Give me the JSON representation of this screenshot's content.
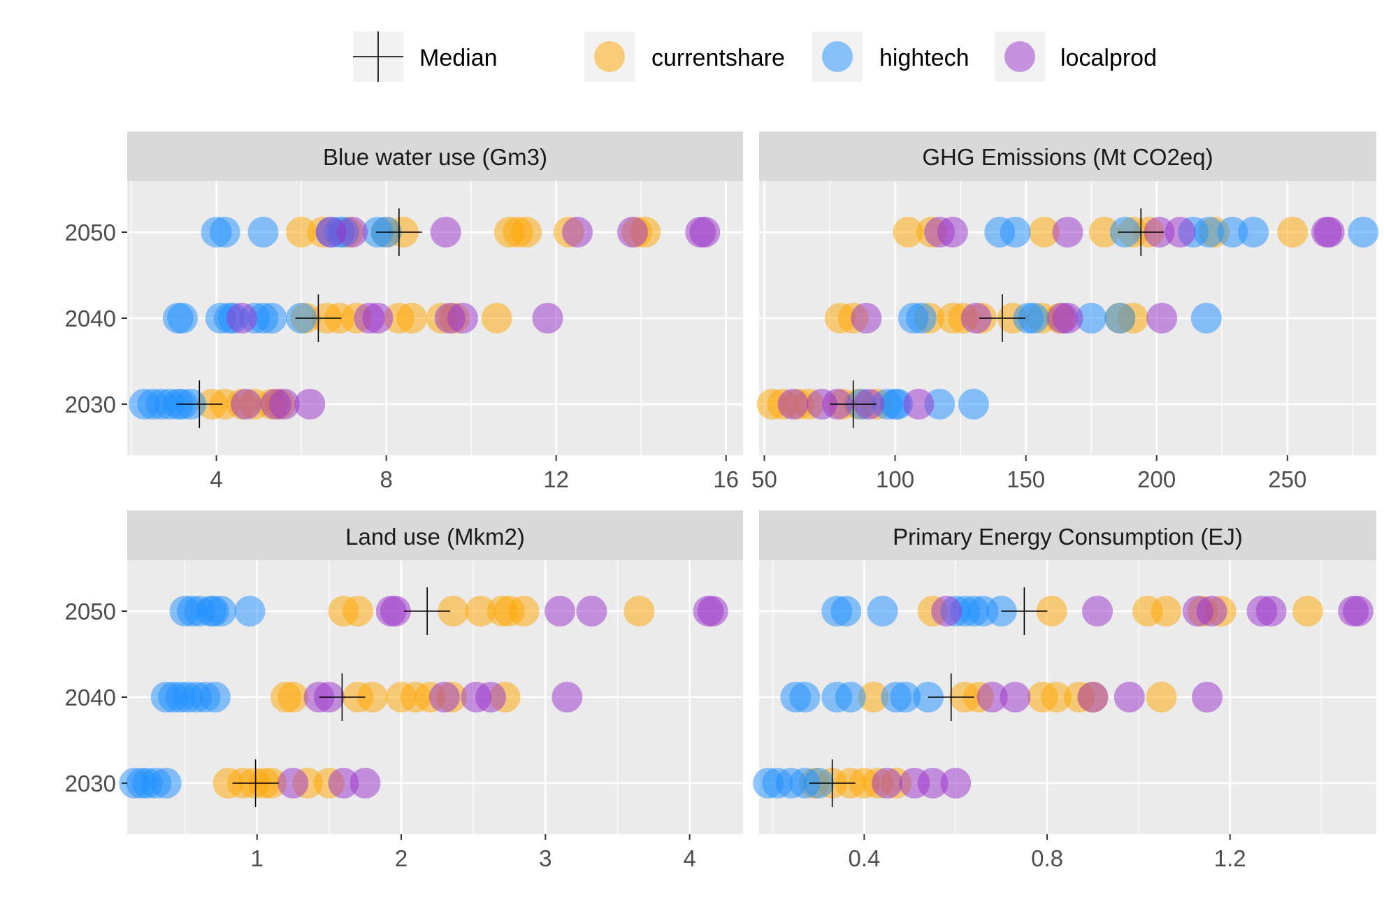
{
  "legend": {
    "median_label": "Median",
    "items": [
      {
        "key": "currentshare",
        "label": "currentshare",
        "color": "#FFA500"
      },
      {
        "key": "hightech",
        "label": "hightech",
        "color": "#1E90FF"
      },
      {
        "key": "localprod",
        "label": "localprod",
        "color": "#9932CC"
      }
    ]
  },
  "chart_data": {
    "type": "scatter",
    "grid": true,
    "legend_position": "top",
    "y_categories": [
      "2030",
      "2040",
      "2050"
    ],
    "panels": [
      {
        "title": "Blue water use (Gm3)",
        "xlim": [
          1.9,
          16.4
        ],
        "xticks": [
          4,
          8,
          12,
          16
        ],
        "medians": {
          "2030": 3.6,
          "2040": 6.4,
          "2050": 8.3
        },
        "points": {
          "2050": {
            "currentshare": [
              6.0,
              6.5,
              7.1,
              8.0,
              8.4,
              10.9,
              11.1,
              11.3,
              12.3,
              13.9,
              14.1
            ],
            "hightech": [
              4.0,
              4.2,
              5.1,
              6.7,
              6.9,
              7.0,
              7.8,
              8.0
            ],
            "localprod": [
              6.7,
              7.2,
              9.4,
              12.5,
              13.8,
              15.4,
              15.5
            ]
          },
          "2040": {
            "currentshare": [
              6.1,
              6.6,
              6.9,
              7.3,
              8.3,
              8.6,
              9.3,
              9.6,
              10.6
            ],
            "hightech": [
              3.1,
              3.2,
              4.1,
              4.3,
              4.4,
              4.9,
              5.1,
              5.3,
              6.0
            ],
            "localprod": [
              4.6,
              7.6,
              7.8,
              9.5,
              9.8,
              11.8
            ]
          },
          "2030": {
            "currentshare": [
              3.9,
              4.2,
              4.6,
              4.9,
              5.3,
              5.5
            ],
            "hightech": [
              2.3,
              2.5,
              2.7,
              2.9,
              3.1,
              3.2,
              3.4
            ],
            "localprod": [
              4.7,
              5.4,
              5.6,
              6.2
            ]
          }
        }
      },
      {
        "title": "GHG Emissions (Mt CO2eq)",
        "xlim": [
          48,
          284
        ],
        "xticks": [
          50,
          100,
          150,
          200,
          250
        ],
        "medians": {
          "2030": 84,
          "2040": 141,
          "2050": 194
        },
        "points": {
          "2050": {
            "currentshare": [
              105,
              114,
              157,
              180,
              191,
              197,
              222,
              252
            ],
            "hightech": [
              140,
              146,
              188,
              214,
              220,
              229,
              237,
              279
            ],
            "localprod": [
              117,
              122,
              166,
              201,
              209,
              265,
              266
            ]
          },
          "2040": {
            "currentshare": [
              79,
              84,
              113,
              122,
              126,
              133,
              145,
              156,
              163,
              186,
              191
            ],
            "hightech": [
              107,
              110,
              151,
              153,
              175,
              186,
              219
            ],
            "localprod": [
              89,
              131,
              164,
              166,
              202
            ]
          },
          "2030": {
            "currentshare": [
              53,
              57,
              63,
              67,
              80,
              86,
              93
            ],
            "hightech": [
              87,
              97,
              100,
              101,
              117,
              130
            ],
            "localprod": [
              61,
              72,
              78,
              90,
              109
            ]
          }
        }
      },
      {
        "title": "Land use (Mkm2)",
        "xlim": [
          0.1,
          4.37
        ],
        "xticks": [
          1,
          2,
          3,
          4
        ],
        "medians": {
          "2030": 0.99,
          "2040": 1.59,
          "2050": 2.18
        },
        "points": {
          "2050": {
            "currentshare": [
              1.6,
              1.7,
              2.36,
              2.55,
              2.7,
              2.75,
              2.85,
              3.65
            ],
            "hightech": [
              0.5,
              0.55,
              0.6,
              0.68,
              0.7,
              0.75,
              0.95
            ],
            "localprod": [
              1.93,
              1.96,
              3.1,
              3.32,
              4.13,
              4.16
            ]
          },
          "2040": {
            "currentshare": [
              1.2,
              1.25,
              1.7,
              1.8,
              2.0,
              2.1,
              2.2,
              2.35,
              2.72
            ],
            "hightech": [
              0.37,
              0.42,
              0.47,
              0.52,
              0.58,
              0.64,
              0.71
            ],
            "localprod": [
              1.43,
              1.5,
              2.3,
              2.52,
              2.62,
              3.15
            ]
          },
          "2030": {
            "currentshare": [
              0.8,
              0.9,
              0.98,
              1.05,
              1.1,
              1.35,
              1.5
            ],
            "hightech": [
              0.15,
              0.2,
              0.24,
              0.3,
              0.37
            ],
            "localprod": [
              1.25,
              1.6,
              1.75
            ]
          }
        }
      },
      {
        "title": "Primary Energy Consumption (EJ)",
        "xlim": [
          0.17,
          1.52
        ],
        "xticks": [
          0.4,
          0.8,
          1.2
        ],
        "medians": {
          "2030": 0.33,
          "2040": 0.59,
          "2050": 0.75
        },
        "points": {
          "2050": {
            "currentshare": [
              0.55,
              0.81,
              1.02,
              1.06,
              1.14,
              1.18,
              1.37
            ],
            "hightech": [
              0.34,
              0.36,
              0.44,
              0.6,
              0.62,
              0.64,
              0.66,
              0.7
            ],
            "localprod": [
              0.58,
              0.91,
              1.13,
              1.16,
              1.27,
              1.29,
              1.47,
              1.48
            ]
          },
          "2040": {
            "currentshare": [
              0.42,
              0.62,
              0.65,
              0.79,
              0.82,
              0.87,
              0.9,
              1.05
            ],
            "hightech": [
              0.25,
              0.27,
              0.34,
              0.37,
              0.47,
              0.49,
              0.54
            ],
            "localprod": [
              0.68,
              0.73,
              0.9,
              0.98,
              1.15
            ]
          },
          "2030": {
            "currentshare": [
              0.29,
              0.33,
              0.37,
              0.4,
              0.43,
              0.47
            ],
            "hightech": [
              0.19,
              0.21,
              0.24,
              0.27,
              0.3
            ],
            "localprod": [
              0.45,
              0.51,
              0.55,
              0.6
            ]
          }
        }
      }
    ]
  }
}
